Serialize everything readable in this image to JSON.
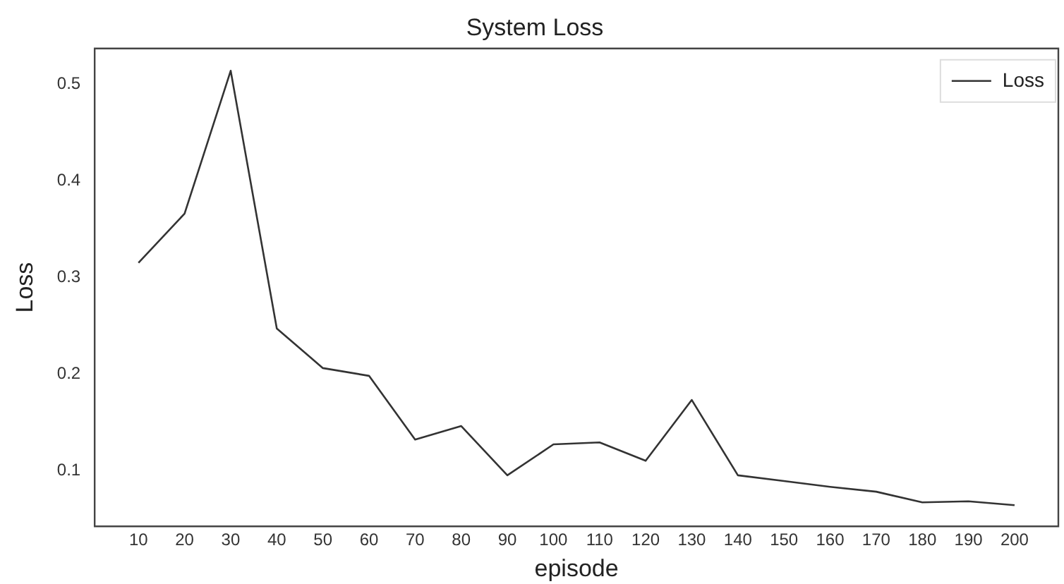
{
  "chart_data": {
    "type": "line",
    "title": "System Loss",
    "xlabel": "episode",
    "ylabel": "Loss",
    "x": [
      10,
      20,
      30,
      40,
      50,
      60,
      70,
      80,
      90,
      100,
      110,
      120,
      130,
      140,
      150,
      160,
      170,
      180,
      190,
      200
    ],
    "series": [
      {
        "name": "Loss",
        "color": "#333333",
        "values": [
          0.315,
          0.366,
          0.514,
          0.247,
          0.206,
          0.198,
          0.132,
          0.146,
          0.095,
          0.127,
          0.129,
          0.11,
          0.173,
          0.095,
          0.089,
          0.083,
          0.078,
          0.067,
          0.068,
          0.064
        ]
      }
    ],
    "xlim": [
      0.5,
      209.5
    ],
    "xticks": [
      10,
      20,
      30,
      40,
      50,
      60,
      70,
      80,
      90,
      100,
      110,
      120,
      130,
      140,
      150,
      160,
      170,
      180,
      190,
      200
    ],
    "ylim": [
      0.042,
      0.537
    ],
    "yticks": [
      0.1,
      0.2,
      0.3,
      0.4,
      0.5
    ],
    "grid": false,
    "legend": "top right",
    "marker": "none",
    "line_style": "solid"
  }
}
